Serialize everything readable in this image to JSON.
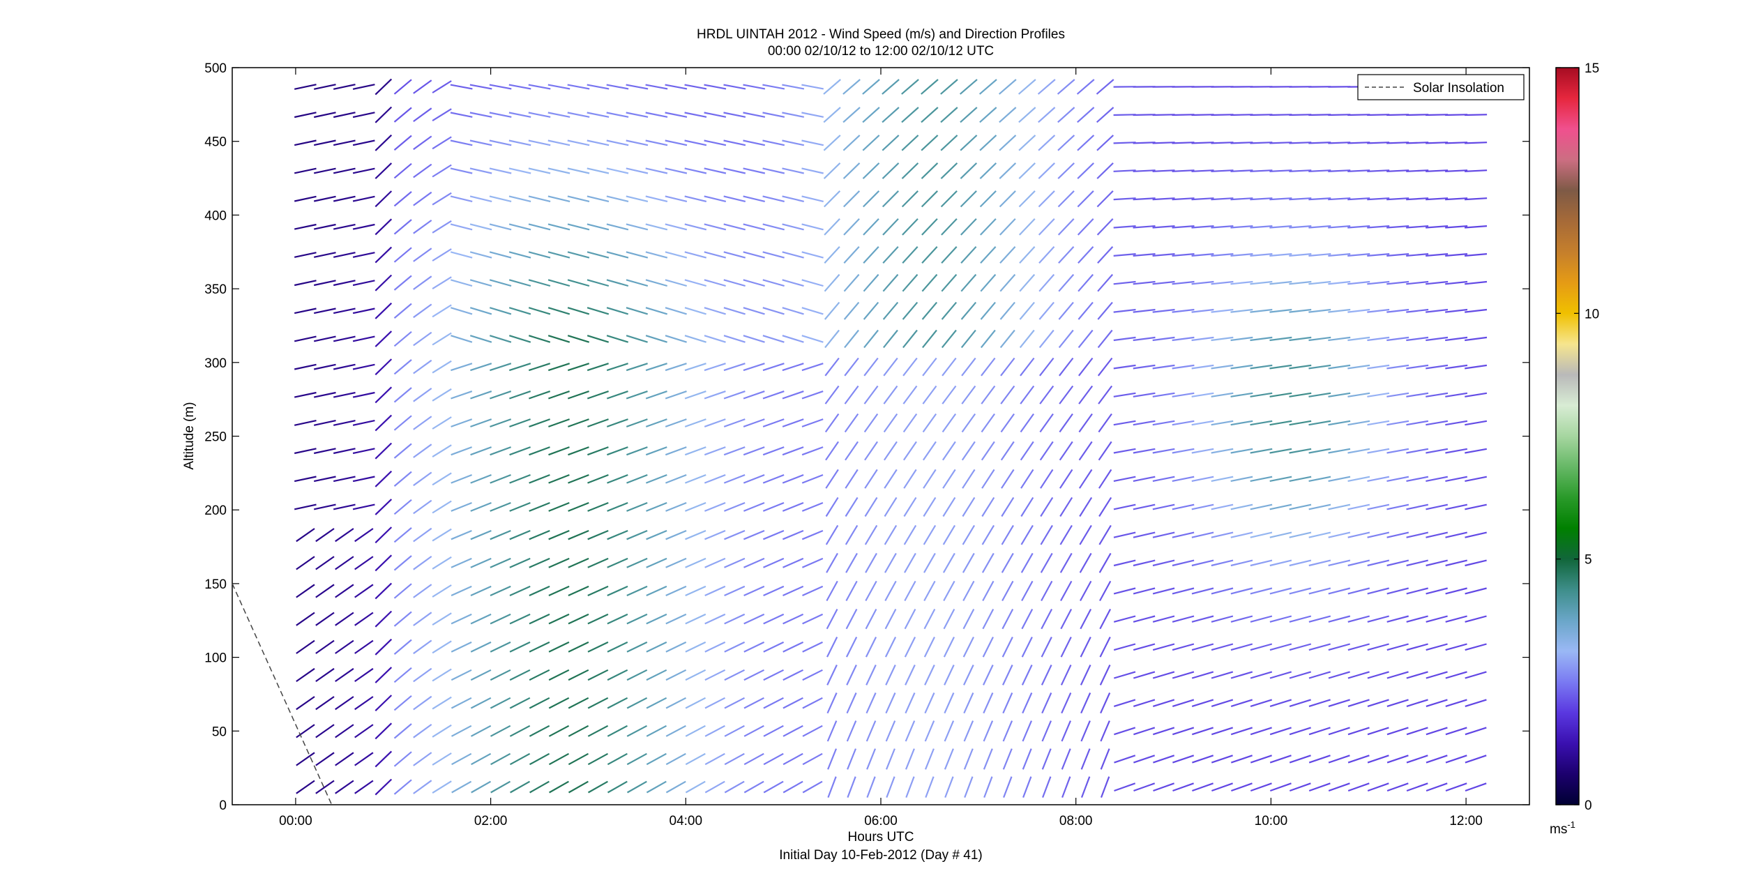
{
  "chart_data": {
    "type": "wind-barb",
    "title": "HRDL UINTAH 2012 - Wind Speed (m/s) and Direction Profiles",
    "subtitle": "00:00 02/10/12 to 12:00 02/10/12  UTC",
    "xlabel": "Hours UTC",
    "xlabel2": "Initial Day 10-Feb-2012 (Day # 41)",
    "ylabel": "Altitude (m)",
    "xlim": [
      -0.65,
      12.65
    ],
    "ylim": [
      0,
      500
    ],
    "x_ticks": [
      0,
      2,
      4,
      6,
      8,
      10,
      12
    ],
    "x_tick_labels": [
      "00:00",
      "02:00",
      "04:00",
      "06:00",
      "08:00",
      "10:00",
      "12:00"
    ],
    "y_ticks": [
      0,
      50,
      100,
      150,
      200,
      250,
      300,
      350,
      400,
      450,
      500
    ],
    "colorbar": {
      "range": [
        0,
        15
      ],
      "ticks": [
        0,
        5,
        10,
        15
      ],
      "unit_label": "ms",
      "unit_exponent": "-1",
      "colors": [
        "#000033",
        "#1c006e",
        "#3a10b0",
        "#5a38e0",
        "#7a7af2",
        "#9ab8f5",
        "#6aa6c8",
        "#3e8e8a",
        "#11663a",
        "#008000",
        "#2a9a2a",
        "#66b866",
        "#a6d6a0",
        "#d8ecd4",
        "#b9b9b9",
        "#f6e58e",
        "#f0c000",
        "#e59b15",
        "#c57f2c",
        "#a66a38",
        "#7e5a46",
        "#cc6e82",
        "#f0508e",
        "#e6273e",
        "#a60c22"
      ]
    },
    "legend": {
      "position": "top-right",
      "entries": [
        "Solar Insolation"
      ]
    },
    "series": [
      {
        "name": "Solar Insolation",
        "type": "dashed-line",
        "x": [
          -0.65,
          0.37
        ],
        "y": [
          150,
          0
        ]
      }
    ],
    "grid": false
  }
}
